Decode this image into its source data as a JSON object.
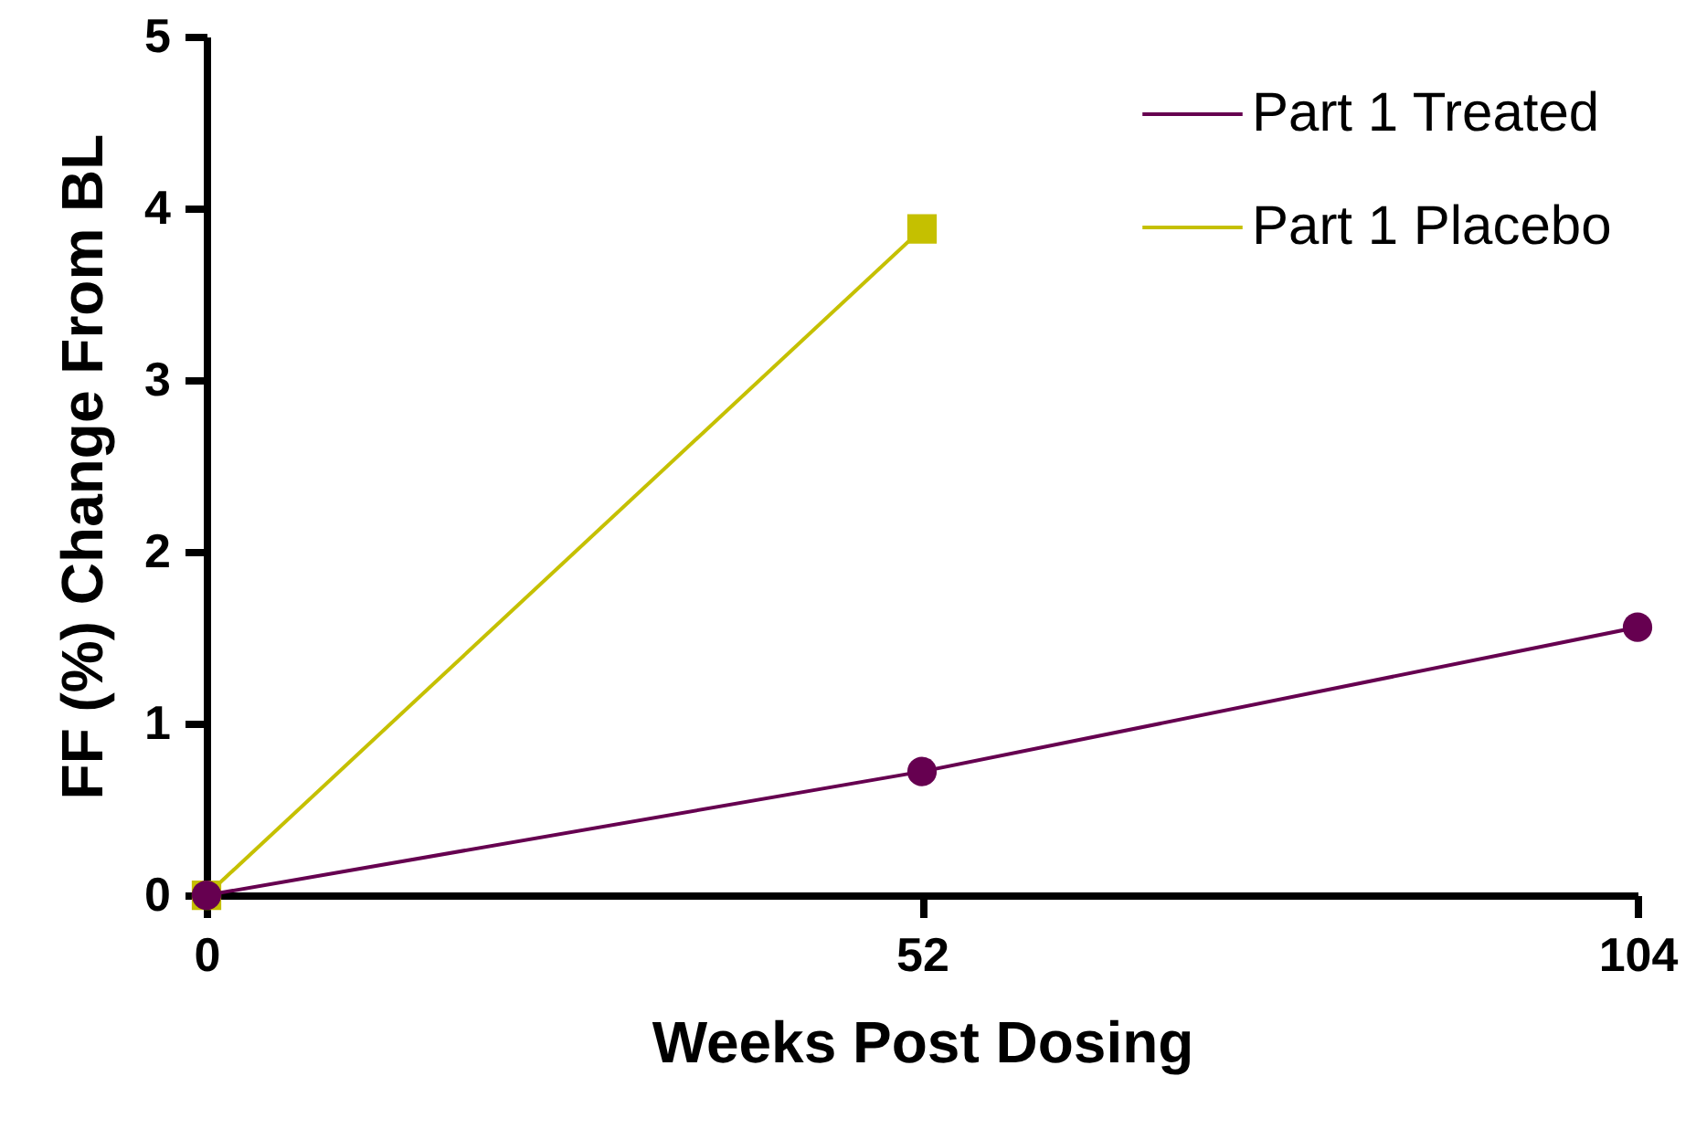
{
  "chart_data": {
    "type": "line",
    "xlabel": "Weeks Post Dosing",
    "ylabel": "FF (%) Change From BL",
    "xlim": [
      0,
      104
    ],
    "xticks": [
      0,
      52,
      104
    ],
    "ylim": [
      0,
      5
    ],
    "yticks": [
      0,
      1,
      2,
      3,
      4,
      5
    ],
    "grid": false,
    "legend": "top right",
    "marker": "circle",
    "series": [
      {
        "name": "Part 1 Treated",
        "color": "#660050",
        "marker": "circle",
        "x": [
          0,
          52,
          104
        ],
        "values": [
          0,
          0.72,
          1.56
        ]
      },
      {
        "name": "Part 1 Placebo",
        "color": "#c5c000",
        "marker": "square",
        "x": [
          0,
          52
        ],
        "values": [
          0,
          3.88
        ]
      }
    ]
  }
}
